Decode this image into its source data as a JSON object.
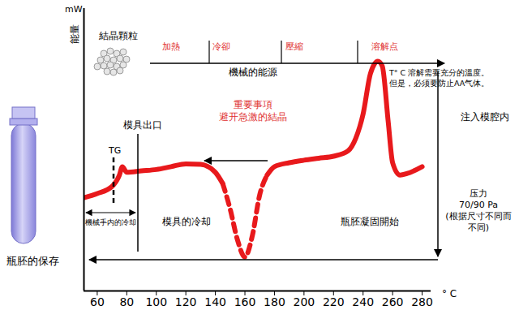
{
  "chart_data": {
    "type": "line",
    "ylabel": "能量",
    "yunit": "mW",
    "xlabel": "° C",
    "x": [
      51,
      60,
      70,
      75,
      77,
      80,
      90,
      100,
      110,
      120,
      130,
      140,
      145,
      150,
      155,
      160,
      165,
      170,
      175,
      180,
      190,
      200,
      210,
      220,
      230,
      235,
      240,
      245,
      250,
      253,
      257,
      260,
      265,
      270,
      280
    ],
    "series": [
      {
        "color": "#e8191c",
        "line_style": "solid",
        "values": [
          33,
          34.5,
          37,
          41,
          44,
          42,
          42.5,
          43,
          44,
          45,
          44.8,
          42,
          38,
          null,
          null,
          null,
          null,
          null,
          41,
          44,
          45.4,
          46.3,
          47,
          47.7,
          49.7,
          54,
          62.6,
          77,
          81.3,
          79.6,
          60,
          45.4,
          41,
          41.6,
          44
        ]
      },
      {
        "color": "#e8191c",
        "line_style": "dashed",
        "values": [
          null,
          null,
          null,
          null,
          null,
          null,
          null,
          null,
          null,
          null,
          null,
          null,
          38,
          29,
          18,
          12,
          19.5,
          34,
          41,
          null,
          null,
          null,
          null,
          null,
          null,
          null,
          null,
          null,
          null,
          null,
          null,
          null,
          null,
          null,
          null
        ]
      }
    ],
    "xlim": [
      51,
      286
    ],
    "xticks": [
      60,
      80,
      100,
      120,
      140,
      160,
      180,
      200,
      220,
      240,
      260,
      280
    ],
    "ylim": [
      0,
      100
    ],
    "tick_labels": "x",
    "annotations": {
      "crystal": "結晶顆粒",
      "phases": [
        "加熱",
        "冷卻",
        "壓縮",
        "溶解点"
      ],
      "energy": "機械的能源",
      "melt_note": [
        "T° C 溶解需要充分的溫度。",
        "但是，必须要防止AA气体。"
      ],
      "important": [
        "重要事項",
        "避开急激的結晶"
      ],
      "mold_exit": "模具出口",
      "tg": "TG",
      "robot_cooling": "機械手内的冷却",
      "mold_cooling": "模具的冷却",
      "solidify": "瓶胚凝固開始",
      "inject": "注入模腔内",
      "pressure": [
        "压力",
        "70/90 Pa",
        "(根据尺寸不同而",
        "不同)"
      ],
      "storage": "瓶胚的保存"
    }
  }
}
